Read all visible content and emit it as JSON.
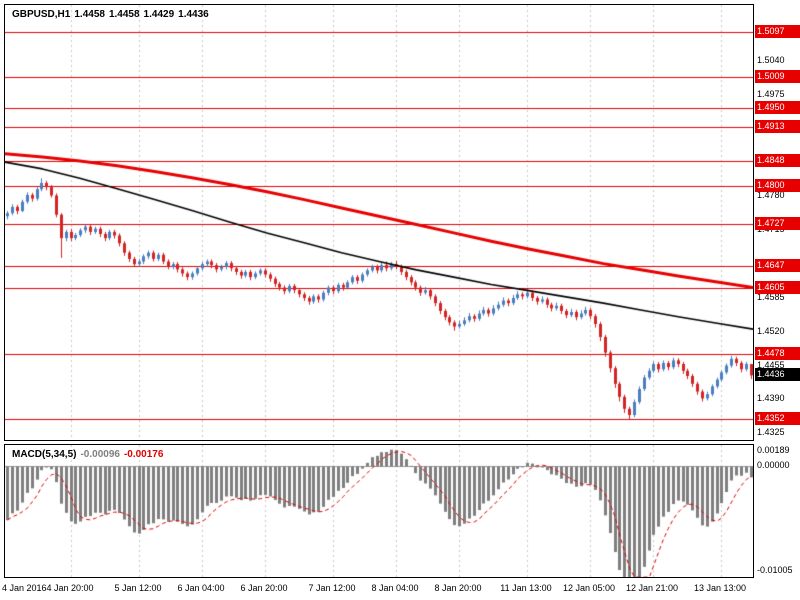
{
  "header": {
    "symbol": "GBPUSD,H1",
    "open": "1.4458",
    "high": "1.4458",
    "low": "1.4429",
    "close": "1.4436"
  },
  "indicator": {
    "name": "MACD(5,34,5)",
    "value": "-0.00096",
    "signal": "-0.00176"
  },
  "colors": {
    "up_candle": "#4a7ec0",
    "down_candle": "#d32424",
    "level_line": "#e60000",
    "level_badge_bg": "#e60000",
    "current_badge_bg": "#000000",
    "badge_text": "#ffffff",
    "ma_black": "#000000",
    "ma_red": "#e60000",
    "histogram": "#7f7f7f",
    "signal_line": "#e00000",
    "grid": "#c9c9c9",
    "axis_text": "#000000"
  },
  "chart_data": [
    {
      "type": "candlestick",
      "title": "GBPUSD,H1",
      "symbol": "GBPUSD",
      "timeframe": "H1",
      "y_axis": {
        "min": 1.4312,
        "max": 1.5148,
        "ticks": [
          1.504,
          1.4975,
          1.478,
          1.4715,
          1.4585,
          1.452,
          1.4455,
          1.439,
          1.4325
        ]
      },
      "horizontal_levels": [
        1.5097,
        1.5009,
        1.495,
        1.4913,
        1.4848,
        1.48,
        1.4727,
        1.4647,
        1.4605,
        1.4478,
        1.4352
      ],
      "current_price": 1.4436,
      "x_ticks": [
        {
          "label": "4 Jan 2016",
          "index": 0
        },
        {
          "label": "4 Jan 20:00",
          "index": 13
        },
        {
          "label": "5 Jan 12:00",
          "index": 27
        },
        {
          "label": "6 Jan 04:00",
          "index": 40
        },
        {
          "label": "6 Jan 20:00",
          "index": 53
        },
        {
          "label": "7 Jan 12:00",
          "index": 67
        },
        {
          "label": "8 Jan 04:00",
          "index": 80
        },
        {
          "label": "8 Jan 20:00",
          "index": 93
        },
        {
          "label": "11 Jan 13:00",
          "index": 107
        },
        {
          "label": "12 Jan 05:00",
          "index": 120
        },
        {
          "label": "12 Jan 21:00",
          "index": 133
        },
        {
          "label": "13 Jan 13:00",
          "index": 147
        }
      ],
      "ma_black_points": [
        [
          0,
          1.4846
        ],
        [
          0.05,
          1.4833
        ],
        [
          0.1,
          1.4815
        ],
        [
          0.15,
          1.4795
        ],
        [
          0.2,
          1.4774
        ],
        [
          0.25,
          1.4753
        ],
        [
          0.3,
          1.4731
        ],
        [
          0.35,
          1.471
        ],
        [
          0.4,
          1.4691
        ],
        [
          0.45,
          1.4672
        ],
        [
          0.5,
          1.4655
        ],
        [
          0.55,
          1.4639
        ],
        [
          0.6,
          1.4625
        ],
        [
          0.65,
          1.4611
        ],
        [
          0.7,
          1.4599
        ],
        [
          0.75,
          1.4587
        ],
        [
          0.8,
          1.4575
        ],
        [
          0.85,
          1.4562
        ],
        [
          0.9,
          1.4549
        ],
        [
          0.95,
          1.4537
        ],
        [
          1,
          1.4525
        ]
      ],
      "ma_red_points": [
        [
          0,
          1.4862
        ],
        [
          0.05,
          1.4856
        ],
        [
          0.1,
          1.4848
        ],
        [
          0.15,
          1.4839
        ],
        [
          0.2,
          1.4828
        ],
        [
          0.25,
          1.4816
        ],
        [
          0.3,
          1.4803
        ],
        [
          0.35,
          1.4789
        ],
        [
          0.4,
          1.4774
        ],
        [
          0.45,
          1.4758
        ],
        [
          0.5,
          1.4742
        ],
        [
          0.55,
          1.4726
        ],
        [
          0.6,
          1.471
        ],
        [
          0.65,
          1.4694
        ],
        [
          0.7,
          1.4679
        ],
        [
          0.75,
          1.4665
        ],
        [
          0.8,
          1.4651
        ],
        [
          0.85,
          1.4639
        ],
        [
          0.9,
          1.4627
        ],
        [
          0.95,
          1.4616
        ],
        [
          1,
          1.4605
        ]
      ],
      "candles": [
        [
          1.4742,
          1.4752,
          1.4736,
          1.4748
        ],
        [
          1.4748,
          1.4765,
          1.4744,
          1.476
        ],
        [
          1.476,
          1.4764,
          1.4746,
          1.4752
        ],
        [
          1.4752,
          1.4774,
          1.475,
          1.477
        ],
        [
          1.477,
          1.4788,
          1.4766,
          1.4783
        ],
        [
          1.4783,
          1.4787,
          1.477,
          1.4776
        ],
        [
          1.4776,
          1.4798,
          1.4772,
          1.4794
        ],
        [
          1.4794,
          1.4815,
          1.479,
          1.4806
        ],
        [
          1.4806,
          1.481,
          1.4792,
          1.4798
        ],
        [
          1.4798,
          1.4802,
          1.4778,
          1.4782
        ],
        [
          1.4782,
          1.4786,
          1.474,
          1.4745
        ],
        [
          1.4745,
          1.4748,
          1.4662,
          1.47
        ],
        [
          1.47,
          1.4716,
          1.4694,
          1.4712
        ],
        [
          1.4712,
          1.4718,
          1.4694,
          1.47
        ],
        [
          1.47,
          1.471,
          1.4696,
          1.4706
        ],
        [
          1.4706,
          1.4719,
          1.4702,
          1.4715
        ],
        [
          1.4715,
          1.4726,
          1.471,
          1.4722
        ],
        [
          1.4722,
          1.4726,
          1.4706,
          1.4712
        ],
        [
          1.4712,
          1.4722,
          1.4708,
          1.4718
        ],
        [
          1.4718,
          1.4722,
          1.4702,
          1.4708
        ],
        [
          1.4708,
          1.4712,
          1.4694,
          1.47
        ],
        [
          1.47,
          1.4716,
          1.4696,
          1.4712
        ],
        [
          1.4712,
          1.4716,
          1.4699,
          1.4705
        ],
        [
          1.4705,
          1.4709,
          1.4684,
          1.469
        ],
        [
          1.469,
          1.4694,
          1.4666,
          1.4672
        ],
        [
          1.4672,
          1.4676,
          1.4654,
          1.466
        ],
        [
          1.466,
          1.4664,
          1.4644,
          1.465
        ],
        [
          1.465,
          1.466,
          1.4645,
          1.4655
        ],
        [
          1.4655,
          1.4669,
          1.465,
          1.4665
        ],
        [
          1.4665,
          1.4676,
          1.466,
          1.4672
        ],
        [
          1.4672,
          1.4676,
          1.4655,
          1.466
        ],
        [
          1.466,
          1.4672,
          1.4656,
          1.4668
        ],
        [
          1.4668,
          1.4672,
          1.465,
          1.4655
        ],
        [
          1.4655,
          1.4659,
          1.464,
          1.4645
        ],
        [
          1.4645,
          1.4654,
          1.464,
          1.465
        ],
        [
          1.465,
          1.4654,
          1.4634,
          1.464
        ],
        [
          1.464,
          1.4644,
          1.4626,
          1.4632
        ],
        [
          1.4632,
          1.4636,
          1.4619,
          1.4625
        ],
        [
          1.4625,
          1.4636,
          1.462,
          1.4632
        ],
        [
          1.4632,
          1.4646,
          1.4628,
          1.4642
        ],
        [
          1.4642,
          1.4654,
          1.4638,
          1.465
        ],
        [
          1.465,
          1.4659,
          1.4645,
          1.4655
        ],
        [
          1.4655,
          1.4659,
          1.4642,
          1.4648
        ],
        [
          1.4648,
          1.4652,
          1.4634,
          1.464
        ],
        [
          1.464,
          1.4649,
          1.4636,
          1.4645
        ],
        [
          1.4645,
          1.4656,
          1.464,
          1.4652
        ],
        [
          1.4652,
          1.4656,
          1.4636,
          1.4642
        ],
        [
          1.4642,
          1.4646,
          1.4629,
          1.4635
        ],
        [
          1.4635,
          1.4639,
          1.4622,
          1.4628
        ],
        [
          1.4628,
          1.4639,
          1.4624,
          1.4635
        ],
        [
          1.4635,
          1.4639,
          1.4619,
          1.4625
        ],
        [
          1.4625,
          1.4636,
          1.4621,
          1.4632
        ],
        [
          1.4632,
          1.4642,
          1.4628,
          1.4638
        ],
        [
          1.4638,
          1.4642,
          1.4624,
          1.463
        ],
        [
          1.463,
          1.4634,
          1.4616,
          1.4622
        ],
        [
          1.4622,
          1.4626,
          1.4606,
          1.4612
        ],
        [
          1.4612,
          1.4616,
          1.4599,
          1.4605
        ],
        [
          1.4605,
          1.4609,
          1.4592,
          1.4598
        ],
        [
          1.4598,
          1.4612,
          1.4594,
          1.4608
        ],
        [
          1.4608,
          1.4612,
          1.4594,
          1.46
        ],
        [
          1.46,
          1.4604,
          1.4586,
          1.4592
        ],
        [
          1.4592,
          1.4596,
          1.4579,
          1.4585
        ],
        [
          1.4585,
          1.4589,
          1.4572,
          1.4578
        ],
        [
          1.4578,
          1.4592,
          1.4574,
          1.4588
        ],
        [
          1.4588,
          1.4592,
          1.4576,
          1.4582
        ],
        [
          1.4582,
          1.4599,
          1.4578,
          1.4595
        ],
        [
          1.4595,
          1.4609,
          1.459,
          1.4605
        ],
        [
          1.4605,
          1.4609,
          1.4592,
          1.4598
        ],
        [
          1.4598,
          1.4614,
          1.4594,
          1.461
        ],
        [
          1.461,
          1.4614,
          1.4599,
          1.4605
        ],
        [
          1.4605,
          1.4619,
          1.4601,
          1.4615
        ],
        [
          1.4615,
          1.4629,
          1.4611,
          1.4625
        ],
        [
          1.4625,
          1.4629,
          1.4612,
          1.4618
        ],
        [
          1.4618,
          1.4634,
          1.4614,
          1.463
        ],
        [
          1.463,
          1.4642,
          1.4626,
          1.4638
        ],
        [
          1.4638,
          1.4649,
          1.4634,
          1.4645
        ],
        [
          1.4645,
          1.4649,
          1.4632,
          1.4638
        ],
        [
          1.4638,
          1.4652,
          1.4634,
          1.4648
        ],
        [
          1.4648,
          1.4655,
          1.4636,
          1.4642
        ],
        [
          1.4642,
          1.4654,
          1.4638,
          1.465
        ],
        [
          1.465,
          1.4656,
          1.464,
          1.4645
        ],
        [
          1.4645,
          1.4649,
          1.4629,
          1.4635
        ],
        [
          1.4635,
          1.4639,
          1.4619,
          1.4625
        ],
        [
          1.4625,
          1.4629,
          1.4609,
          1.4615
        ],
        [
          1.4615,
          1.4619,
          1.4599,
          1.4605
        ],
        [
          1.4605,
          1.4609,
          1.4589,
          1.4595
        ],
        [
          1.4595,
          1.4606,
          1.4591,
          1.46
        ],
        [
          1.46,
          1.4604,
          1.4582,
          1.4588
        ],
        [
          1.4588,
          1.4592,
          1.4569,
          1.4575
        ],
        [
          1.4575,
          1.4579,
          1.4554,
          1.456
        ],
        [
          1.456,
          1.4564,
          1.4542,
          1.4548
        ],
        [
          1.4548,
          1.4552,
          1.4532,
          1.4538
        ],
        [
          1.4538,
          1.4542,
          1.4522,
          1.453
        ],
        [
          1.453,
          1.4541,
          1.4526,
          1.4535
        ],
        [
          1.4535,
          1.4548,
          1.4531,
          1.4542
        ],
        [
          1.4542,
          1.4556,
          1.4538,
          1.455
        ],
        [
          1.455,
          1.4554,
          1.4539,
          1.4545
        ],
        [
          1.4545,
          1.4561,
          1.4541,
          1.4555
        ],
        [
          1.4555,
          1.4568,
          1.4551,
          1.4562
        ],
        [
          1.4562,
          1.4566,
          1.4549,
          1.4555
        ],
        [
          1.4555,
          1.4571,
          1.4551,
          1.4565
        ],
        [
          1.4565,
          1.4578,
          1.4561,
          1.4572
        ],
        [
          1.4572,
          1.4586,
          1.4568,
          1.458
        ],
        [
          1.458,
          1.4584,
          1.4569,
          1.4575
        ],
        [
          1.4575,
          1.4591,
          1.4571,
          1.4585
        ],
        [
          1.4585,
          1.4598,
          1.4581,
          1.4592
        ],
        [
          1.4592,
          1.4596,
          1.4582,
          1.4588
        ],
        [
          1.4588,
          1.4602,
          1.4584,
          1.4595
        ],
        [
          1.4595,
          1.4599,
          1.4579,
          1.4585
        ],
        [
          1.4585,
          1.4589,
          1.4572,
          1.4578
        ],
        [
          1.4578,
          1.4588,
          1.4574,
          1.4582
        ],
        [
          1.4582,
          1.4586,
          1.4566,
          1.4572
        ],
        [
          1.4572,
          1.4576,
          1.4559,
          1.4565
        ],
        [
          1.4565,
          1.4576,
          1.4561,
          1.457
        ],
        [
          1.457,
          1.4574,
          1.4554,
          1.456
        ],
        [
          1.456,
          1.4564,
          1.4546,
          1.4552
        ],
        [
          1.4552,
          1.4564,
          1.4548,
          1.4558
        ],
        [
          1.4558,
          1.4562,
          1.4542,
          1.4548
        ],
        [
          1.4548,
          1.4561,
          1.4544,
          1.4555
        ],
        [
          1.4555,
          1.4568,
          1.4551,
          1.4562
        ],
        [
          1.4562,
          1.4566,
          1.4544,
          1.455
        ],
        [
          1.455,
          1.4554,
          1.4528,
          1.4535
        ],
        [
          1.4535,
          1.4539,
          1.4502,
          1.451
        ],
        [
          1.451,
          1.4514,
          1.4472,
          1.448
        ],
        [
          1.448,
          1.4484,
          1.4442,
          1.445
        ],
        [
          1.445,
          1.4454,
          1.4412,
          1.442
        ],
        [
          1.442,
          1.4424,
          1.4386,
          1.4395
        ],
        [
          1.4395,
          1.4399,
          1.4364,
          1.4372
        ],
        [
          1.4372,
          1.4376,
          1.4352,
          1.436
        ],
        [
          1.436,
          1.439,
          1.4356,
          1.4385
        ],
        [
          1.4385,
          1.4415,
          1.4381,
          1.441
        ],
        [
          1.441,
          1.4437,
          1.4406,
          1.4432
        ],
        [
          1.4432,
          1.445,
          1.4428,
          1.4445
        ],
        [
          1.4445,
          1.4463,
          1.4441,
          1.4458
        ],
        [
          1.4458,
          1.4462,
          1.4442,
          1.4448
        ],
        [
          1.4448,
          1.4465,
          1.4444,
          1.446
        ],
        [
          1.446,
          1.4464,
          1.4446,
          1.4452
        ],
        [
          1.4452,
          1.447,
          1.4448,
          1.4465
        ],
        [
          1.4465,
          1.4469,
          1.4452,
          1.4458
        ],
        [
          1.4458,
          1.4462,
          1.4439,
          1.4445
        ],
        [
          1.4445,
          1.4449,
          1.4429,
          1.4435
        ],
        [
          1.4435,
          1.4439,
          1.4414,
          1.442
        ],
        [
          1.442,
          1.4424,
          1.4399,
          1.4405
        ],
        [
          1.4405,
          1.4409,
          1.4386,
          1.4392
        ],
        [
          1.4392,
          1.4405,
          1.4388,
          1.44
        ],
        [
          1.44,
          1.4419,
          1.4396,
          1.4415
        ],
        [
          1.4415,
          1.4432,
          1.4411,
          1.4428
        ],
        [
          1.4428,
          1.4446,
          1.4424,
          1.4442
        ],
        [
          1.4442,
          1.4459,
          1.4438,
          1.4455
        ],
        [
          1.4455,
          1.4474,
          1.4451,
          1.4468
        ],
        [
          1.4468,
          1.4472,
          1.4454,
          1.446
        ],
        [
          1.446,
          1.4464,
          1.4442,
          1.4448
        ],
        [
          1.4448,
          1.4462,
          1.4444,
          1.4458
        ],
        [
          1.4458,
          1.4458,
          1.4429,
          1.4436
        ]
      ]
    },
    {
      "type": "bar",
      "title": "MACD(5,34,5)",
      "current_value": -0.00096,
      "current_signal": -0.00176,
      "y_axis": {
        "min": -0.01005,
        "max": 0.00189,
        "ticks": [
          0.00189,
          0.0,
          -0.01005
        ]
      },
      "derive": {
        "fast_ema": 5,
        "slow_ema": 34,
        "signal_sma": 5,
        "slow_ema_seed": 1.48,
        "source": "closes of main pane candles"
      }
    }
  ]
}
